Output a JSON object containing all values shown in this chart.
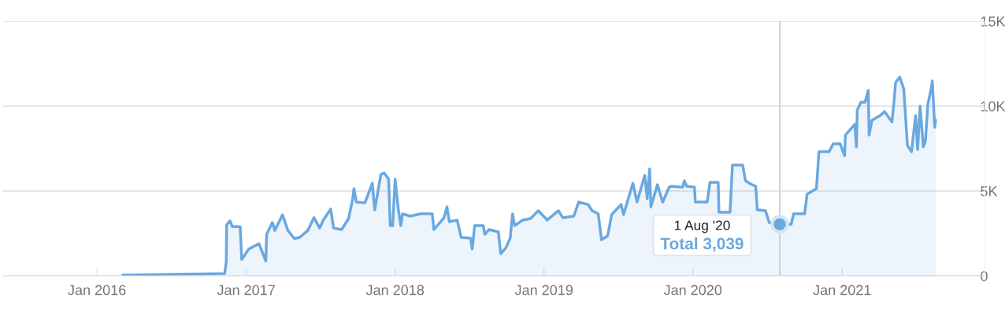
{
  "chart_data": {
    "type": "area",
    "x": [
      "2016-03-05",
      "2016-07-26",
      "2016-11-09",
      "2016-11-13",
      "2016-11-14",
      "2016-11-22",
      "2016-11-28",
      "2016-12-17",
      "2016-12-21",
      "2017-01-07",
      "2017-02-01",
      "2017-02-18",
      "2017-02-20",
      "2017-03-06",
      "2017-03-12",
      "2017-03-31",
      "2017-04-13",
      "2017-04-29",
      "2017-05-12",
      "2017-06-01",
      "2017-06-16",
      "2017-06-30",
      "2017-07-09",
      "2017-07-27",
      "2017-08-03",
      "2017-08-23",
      "2017-09-09",
      "2017-09-19",
      "2017-09-22",
      "2017-09-28",
      "2017-10-19",
      "2017-11-06",
      "2017-11-12",
      "2017-11-27",
      "2017-12-05",
      "2017-12-16",
      "2017-12-20",
      "2017-12-26",
      "2018-01-01",
      "2018-01-09",
      "2018-01-15",
      "2018-01-19",
      "2018-02-07",
      "2018-03-04",
      "2018-04-02",
      "2018-04-06",
      "2018-05-01",
      "2018-05-08",
      "2018-05-14",
      "2018-06-02",
      "2018-06-12",
      "2018-07-05",
      "2018-07-09",
      "2018-07-15",
      "2018-08-05",
      "2018-08-09",
      "2018-08-19",
      "2018-09-11",
      "2018-09-17",
      "2018-09-30",
      "2018-10-10",
      "2018-10-16",
      "2018-10-21",
      "2018-11-10",
      "2018-11-29",
      "2018-12-18",
      "2019-01-09",
      "2019-02-05",
      "2019-02-16",
      "2019-03-15",
      "2019-03-27",
      "2019-04-19",
      "2019-04-29",
      "2019-05-14",
      "2019-05-22",
      "2019-06-06",
      "2019-06-16",
      "2019-07-09",
      "2019-07-15",
      "2019-08-07",
      "2019-08-17",
      "2019-09-05",
      "2019-09-11",
      "2019-09-17",
      "2019-09-20",
      "2019-10-06",
      "2019-10-19",
      "2019-11-04",
      "2019-11-08",
      "2019-12-07",
      "2019-12-11",
      "2019-12-17",
      "2020-01-05",
      "2020-01-07",
      "2020-02-05",
      "2020-02-12",
      "2020-03-03",
      "2020-03-05",
      "2020-04-01",
      "2020-04-07",
      "2020-05-02",
      "2020-05-09",
      "2020-05-25",
      "2020-06-03",
      "2020-06-07",
      "2020-06-27",
      "2020-07-06",
      "2020-08-01",
      "2020-08-29",
      "2020-09-04",
      "2020-10-01",
      "2020-10-07",
      "2020-10-30",
      "2020-11-05",
      "2020-11-30",
      "2020-12-10",
      "2020-12-27",
      "2021-01-07",
      "2021-01-09",
      "2021-02-01",
      "2021-02-05",
      "2021-02-07",
      "2021-02-16",
      "2021-02-26",
      "2021-03-06",
      "2021-03-08",
      "2021-03-15",
      "2021-04-04",
      "2021-04-15",
      "2021-05-03",
      "2021-05-08",
      "2021-05-12",
      "2021-05-22",
      "2021-06-01",
      "2021-06-06",
      "2021-06-10",
      "2021-06-20",
      "2021-06-30",
      "2021-07-05",
      "2021-07-11",
      "2021-07-19",
      "2021-07-24",
      "2021-07-30",
      "2021-08-07",
      "2021-08-10",
      "2021-08-16",
      "2021-08-18"
    ],
    "series": [
      {
        "color": "#6aa8e0",
        "values": [
          50,
          100,
          140,
          830,
          3000,
          3240,
          2900,
          2900,
          970,
          1580,
          1900,
          880,
          2450,
          3150,
          2680,
          3600,
          2680,
          2200,
          2270,
          2680,
          3430,
          2820,
          3290,
          3940,
          2820,
          2730,
          3380,
          4540,
          5140,
          4350,
          4300,
          5460,
          3890,
          5970,
          6060,
          5690,
          2960,
          2960,
          5690,
          3890,
          2960,
          3660,
          3520,
          3660,
          3660,
          2730,
          3430,
          4070,
          3190,
          3290,
          2270,
          2220,
          1580,
          2960,
          2960,
          2450,
          2730,
          2590,
          1300,
          1670,
          2220,
          3660,
          2960,
          3290,
          3380,
          3840,
          3290,
          3840,
          3430,
          3520,
          4350,
          4210,
          3840,
          3660,
          2130,
          2360,
          3610,
          4210,
          3610,
          5460,
          4350,
          5920,
          4540,
          6300,
          4070,
          5370,
          4350,
          5230,
          5280,
          5230,
          5600,
          5280,
          5230,
          4350,
          4350,
          5510,
          5510,
          3750,
          3750,
          6530,
          6530,
          5600,
          5370,
          5280,
          3890,
          3840,
          3150,
          3039,
          3039,
          3660,
          3660,
          4820,
          5140,
          7310,
          7310,
          7780,
          7780,
          7080,
          8290,
          8930,
          7600,
          9770,
          10230,
          10230,
          10930,
          8290,
          9170,
          9440,
          9680,
          9070,
          10230,
          11390,
          11710,
          11010,
          9170,
          7690,
          7310,
          9440,
          7450,
          10000,
          7600,
          7920,
          10090,
          11010,
          11480,
          8750,
          9170
        ]
      }
    ],
    "xlim": [
      "2015-05-16",
      "2021-12-16"
    ],
    "xticks": [
      {
        "value": "2016-01-01",
        "label": "Jan 2016"
      },
      {
        "value": "2017-01-01",
        "label": "Jan 2017"
      },
      {
        "value": "2018-01-01",
        "label": "Jan 2018"
      },
      {
        "value": "2019-01-01",
        "label": "Jan 2019"
      },
      {
        "value": "2020-01-01",
        "label": "Jan 2020"
      },
      {
        "value": "2021-01-01",
        "label": "Jan 2021"
      }
    ],
    "ylim": [
      0,
      15000
    ],
    "yticks": [
      0,
      {
        "value": 5000,
        "label": "5K"
      },
      {
        "value": 10000,
        "label": "10K"
      },
      {
        "value": 15000,
        "label": "15K"
      }
    ],
    "grid": "y",
    "ref_lines": [
      {
        "axis": "x",
        "value": "2020-08-01",
        "color": "#c8c8c8"
      }
    ],
    "annotations": [
      "1 Aug '20",
      "Total 3,039"
    ]
  }
}
